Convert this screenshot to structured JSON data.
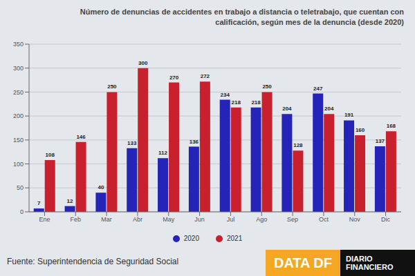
{
  "chart_data": {
    "type": "bar",
    "title": "Número de denuncias de accidentes en trabajo a distancia o teletrabajo, que cuentan con calificación, según mes de la denuncia (desde 2020)",
    "categories": [
      "Ene",
      "Feb",
      "Mar",
      "Abr",
      "May",
      "Jun",
      "Jul",
      "Ago",
      "Sep",
      "Oct",
      "Nov",
      "Dic"
    ],
    "series": [
      {
        "name": "2020",
        "color": "#2424b8",
        "values": [
          7,
          12,
          40,
          133,
          112,
          136,
          234,
          218,
          204,
          247,
          191,
          137
        ]
      },
      {
        "name": "2021",
        "color": "#c8202c",
        "values": [
          108,
          146,
          250,
          300,
          270,
          272,
          218,
          250,
          128,
          204,
          160,
          168
        ]
      }
    ],
    "ylim": [
      0,
      350
    ],
    "yticks": [
      0,
      50,
      100,
      150,
      200,
      250,
      300,
      350
    ],
    "grid": true,
    "data_labels": true,
    "legend": "bottom",
    "annotations": [
      "Fuente: Superintendencia de Seguridad Social",
      "DATA DF",
      "DIARIO FINANCIERO"
    ]
  }
}
